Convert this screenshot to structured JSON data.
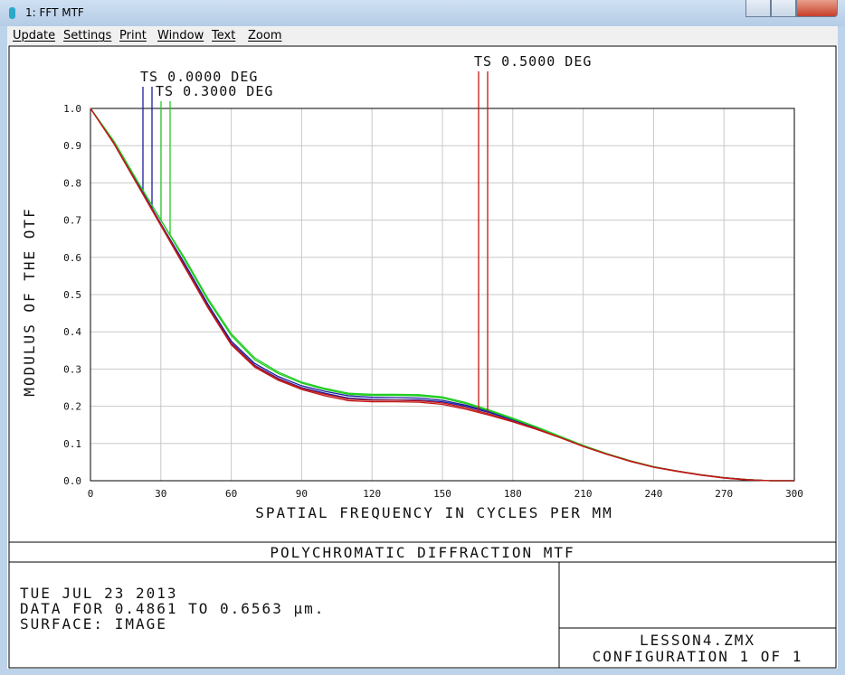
{
  "window": {
    "title": "1: FFT MTF",
    "menu": [
      "Update",
      "Settings",
      "Print",
      "Window",
      "Text",
      "Zoom"
    ]
  },
  "chart_data": {
    "type": "line",
    "xlabel": "SPATIAL FREQUENCY IN CYCLES PER MM",
    "ylabel": "MODULUS OF THE OTF",
    "x": [
      0,
      10,
      20,
      30,
      40,
      50,
      60,
      70,
      80,
      90,
      100,
      110,
      120,
      130,
      140,
      150,
      160,
      170,
      180,
      190,
      200,
      210,
      220,
      230,
      240,
      250,
      260,
      270,
      280,
      290,
      300
    ],
    "xlim": [
      0,
      300
    ],
    "xticks": [
      0,
      30,
      60,
      90,
      120,
      150,
      180,
      210,
      240,
      270,
      300
    ],
    "ylim": [
      0,
      1
    ],
    "yticks": [
      {
        "value": 0,
        "label": "0.0"
      },
      0.1,
      0.2,
      0.3,
      0.4,
      0.5,
      0.6,
      0.7,
      0.8,
      0.9,
      {
        "value": 1,
        "label": "1.0"
      }
    ],
    "grid": true,
    "series": [
      {
        "name": "TS 0.0000 DEG",
        "color": "#1c1ca0",
        "values": [
          1,
          0.91,
          0.8,
          0.69,
          0.58,
          0.47,
          0.37,
          0.31,
          0.275,
          0.25,
          0.235,
          0.222,
          0.218,
          0.217,
          0.217,
          0.212,
          0.2,
          0.183,
          0.163,
          0.142,
          0.118,
          0.093,
          0.072,
          0.053,
          0.037,
          0.026,
          0.016,
          0.008,
          0.003,
          0,
          0
        ],
        "values_s": [
          1,
          0.91,
          0.8,
          0.69,
          0.585,
          0.475,
          0.375,
          0.315,
          0.28,
          0.255,
          0.24,
          0.228,
          0.224,
          0.223,
          0.222,
          0.216,
          0.203,
          0.186,
          0.165,
          0.143,
          0.119,
          0.094,
          0.072,
          0.053,
          0.037,
          0.026,
          0.016,
          0.008,
          0.003,
          0,
          0
        ]
      },
      {
        "name": "TS 0.3000 DEG",
        "color": "#22cc22",
        "values": [
          1,
          0.912,
          0.805,
          0.7,
          0.6,
          0.49,
          0.395,
          0.33,
          0.292,
          0.265,
          0.248,
          0.235,
          0.232,
          0.232,
          0.231,
          0.225,
          0.21,
          0.19,
          0.168,
          0.145,
          0.12,
          0.095,
          0.073,
          0.054,
          0.038,
          0.026,
          0.016,
          0.008,
          0.003,
          0,
          0
        ],
        "values_s": [
          1,
          0.912,
          0.805,
          0.7,
          0.595,
          0.485,
          0.39,
          0.325,
          0.288,
          0.262,
          0.245,
          0.232,
          0.229,
          0.229,
          0.228,
          0.222,
          0.207,
          0.188,
          0.166,
          0.144,
          0.119,
          0.094,
          0.072,
          0.053,
          0.037,
          0.026,
          0.016,
          0.008,
          0.003,
          0,
          0
        ]
      },
      {
        "name": "TS 0.5000 DEG",
        "color": "#c01818",
        "values": [
          1,
          0.905,
          0.795,
          0.685,
          0.575,
          0.465,
          0.365,
          0.305,
          0.27,
          0.245,
          0.228,
          0.215,
          0.212,
          0.212,
          0.211,
          0.205,
          0.192,
          0.176,
          0.158,
          0.138,
          0.116,
          0.092,
          0.071,
          0.052,
          0.036,
          0.025,
          0.015,
          0.007,
          0.002,
          0,
          0
        ],
        "values_s": [
          1,
          0.907,
          0.797,
          0.688,
          0.578,
          0.468,
          0.368,
          0.308,
          0.273,
          0.248,
          0.232,
          0.219,
          0.216,
          0.216,
          0.215,
          0.209,
          0.196,
          0.179,
          0.16,
          0.14,
          0.117,
          0.093,
          0.072,
          0.053,
          0.037,
          0.026,
          0.016,
          0.008,
          0.003,
          0,
          0
        ]
      }
    ]
  },
  "footer": {
    "title": "POLYCHROMATIC DIFFRACTION MTF",
    "info": [
      "TUE JUL 23 2013",
      "DATA FOR 0.4861 TO 0.6563 µm.",
      "SURFACE: IMAGE"
    ],
    "file": "LESSON4.ZMX",
    "configuration": "CONFIGURATION 1 OF 1"
  }
}
